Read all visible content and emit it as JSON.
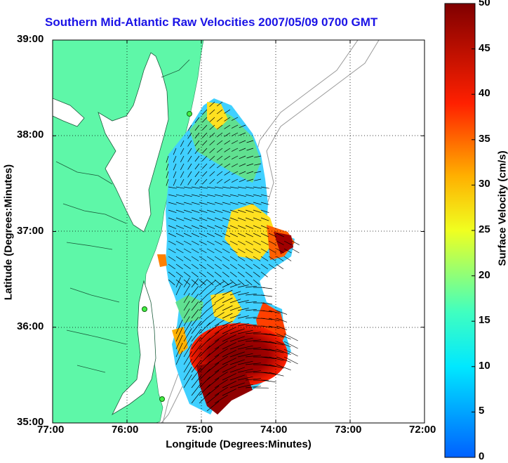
{
  "title": "Southern Mid-Atlantic Raw Velocities 2007/05/09 0700 GMT",
  "xlabel": "Longitude (Degrees:Minutes)",
  "ylabel": "Latitude (Degrees:Minutes)",
  "colorbar": {
    "label": "Surface Velocity (cm/s)",
    "ticks": [
      "0",
      "5",
      "10",
      "15",
      "20",
      "25",
      "30",
      "35",
      "40",
      "45",
      "50"
    ],
    "range": [
      0,
      50
    ]
  },
  "chart_data": {
    "type": "map",
    "xticks": [
      "77:00",
      "76:00",
      "75:00",
      "74:00",
      "73:00",
      "72:00"
    ],
    "yticks": [
      "39:00",
      "38:00",
      "37:00",
      "36:00",
      "35:00"
    ],
    "xlim": [
      -77,
      -72
    ],
    "ylim": [
      35,
      39
    ],
    "grid": true,
    "colors": {
      "land": "#5ef7a8",
      "title": "#1a12e6",
      "contour": "#9a9a9a"
    }
  }
}
